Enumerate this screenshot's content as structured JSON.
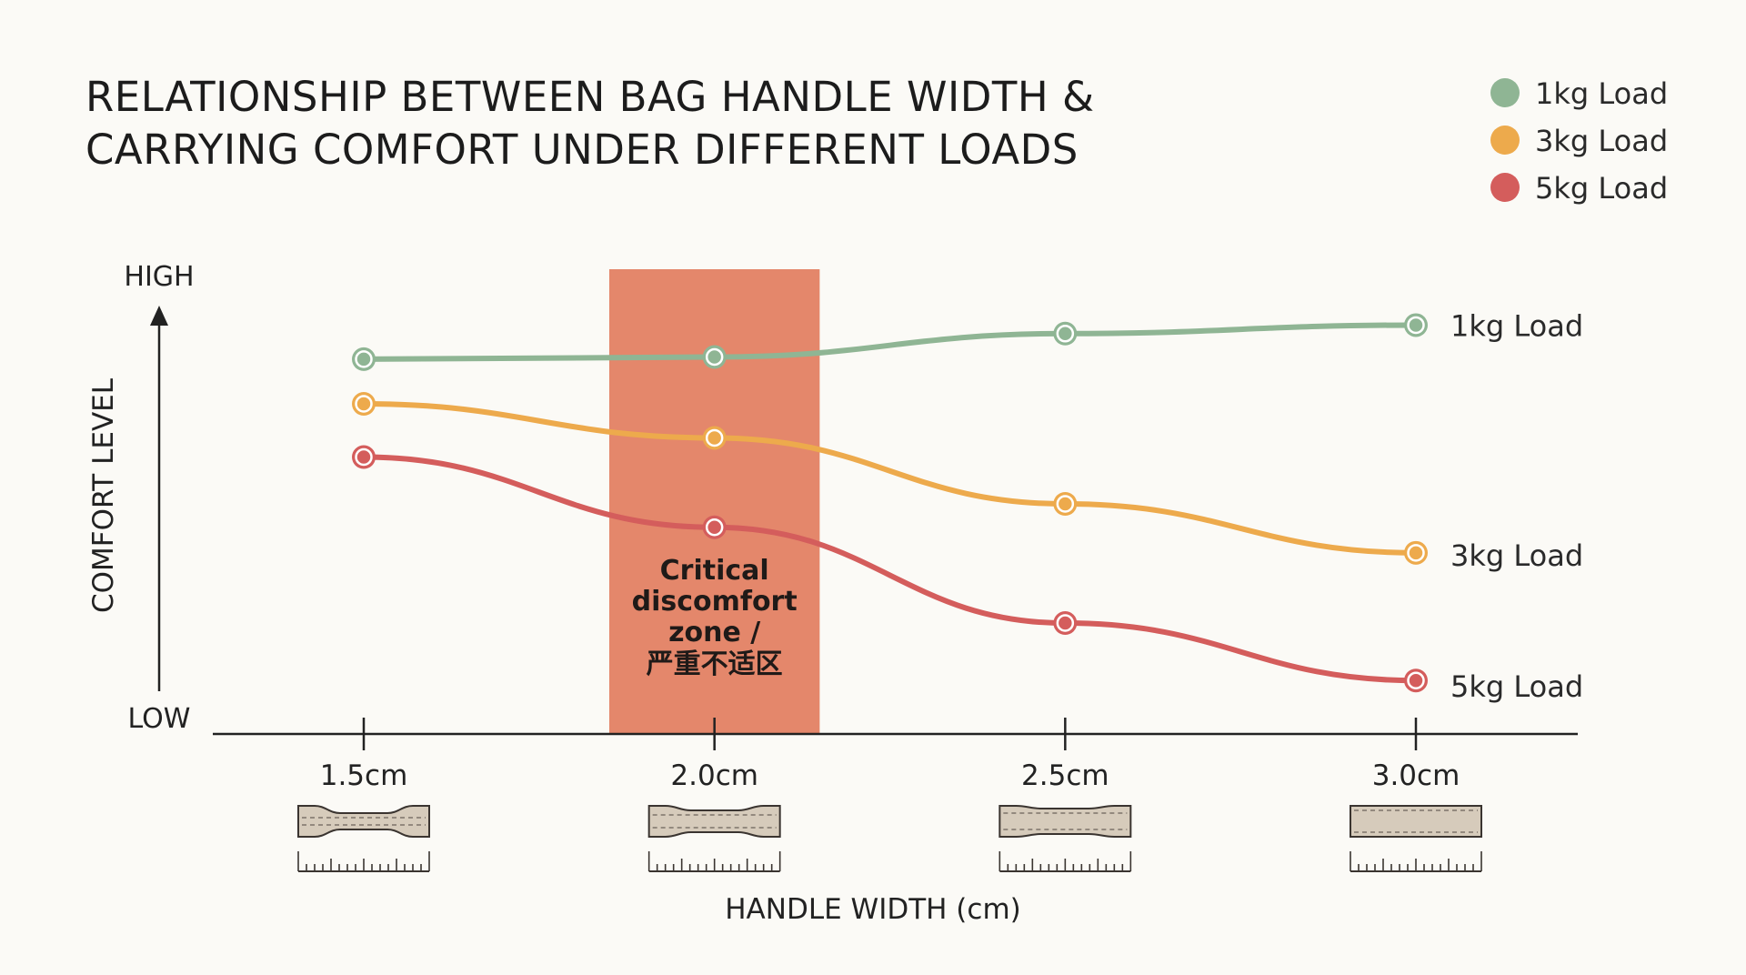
{
  "title_lines": [
    "RELATIONSHIP BETWEEN BAG HANDLE WIDTH &",
    "CARRYING COMFORT UNDER DIFFERENT LOADS"
  ],
  "legend": [
    {
      "label": "1kg Load",
      "color": "#8fb594"
    },
    {
      "label": "3kg Load",
      "color": "#edaa4c"
    },
    {
      "label": "5kg Load",
      "color": "#d45d5c"
    }
  ],
  "y_axis": {
    "label": "COMFORT LEVEL",
    "high": "HIGH",
    "low": "LOW"
  },
  "x_axis": {
    "label": "HANDLE WIDTH (cm)"
  },
  "critical_zone": {
    "lines": [
      "Critical",
      "discomfort",
      "zone /",
      "严重不适区"
    ],
    "color": "#e4876b",
    "x_range": [
      1.85,
      2.15
    ]
  },
  "chart_data": {
    "type": "line",
    "title": "RELATIONSHIP BETWEEN BAG HANDLE WIDTH & CARRYING COMFORT UNDER DIFFERENT LOADS",
    "xlabel": "HANDLE WIDTH (cm)",
    "ylabel": "COMFORT LEVEL",
    "x": [
      1.5,
      2.0,
      2.5,
      3.0
    ],
    "categories": [
      "1.5cm",
      "2.0cm",
      "2.5cm",
      "3.0cm"
    ],
    "xlim": [
      1.1,
      3.23
    ],
    "ylim": [
      0,
      10
    ],
    "y_ticks": [
      "LOW",
      "HIGH"
    ],
    "series": [
      {
        "name": "1kg Load",
        "color": "#8fb594",
        "values": [
          8.4,
          8.45,
          9.0,
          9.2
        ]
      },
      {
        "name": "3kg Load",
        "color": "#edaa4c",
        "values": [
          7.35,
          6.55,
          5.0,
          3.85
        ]
      },
      {
        "name": "5kg Load",
        "color": "#d45d5c",
        "values": [
          6.1,
          4.45,
          2.2,
          0.85
        ]
      }
    ],
    "legend_position": "top-right",
    "grid": false
  }
}
